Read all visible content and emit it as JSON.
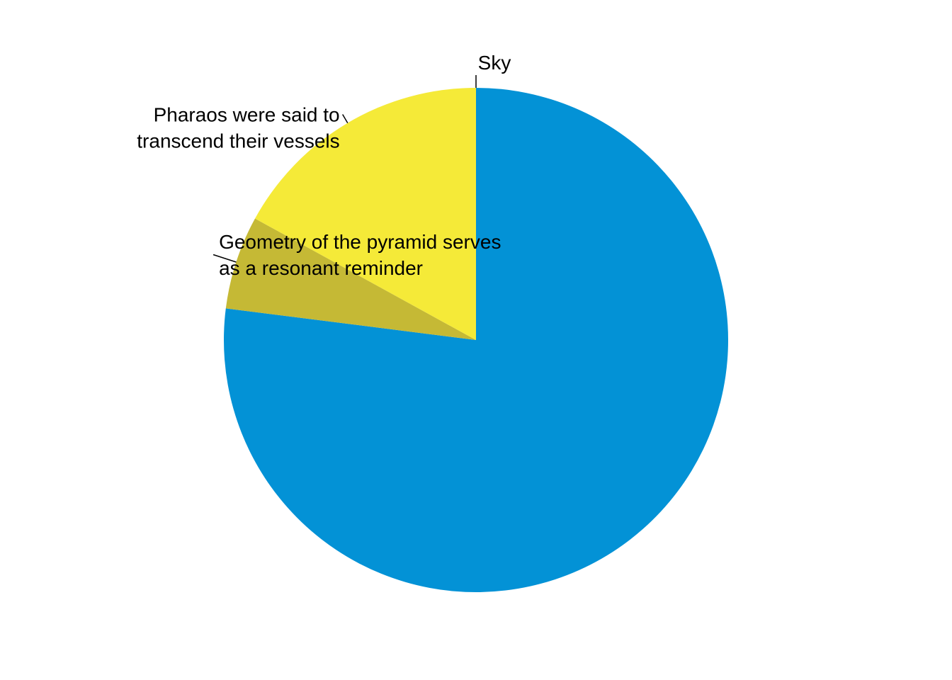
{
  "chart_data": {
    "type": "pie",
    "slices": [
      {
        "label": "Sky",
        "label_lines": [
          "Sky"
        ],
        "value": 77,
        "color": "#0392d6"
      },
      {
        "label": "Geometry of the pyramid serves as a resonant reminder",
        "label_lines": [
          "Geometry of the pyramid serves",
          "as a resonant reminder"
        ],
        "value": 6,
        "color": "#c5b935"
      },
      {
        "label": "Pharaos were said to transcend their vessels",
        "label_lines": [
          "Pharaos were said to",
          "transcend their vessels"
        ],
        "value": 17,
        "color": "#f5ea38"
      }
    ],
    "start_angle_deg": 0,
    "direction": "clockwise",
    "legend": "none",
    "grid": false
  }
}
